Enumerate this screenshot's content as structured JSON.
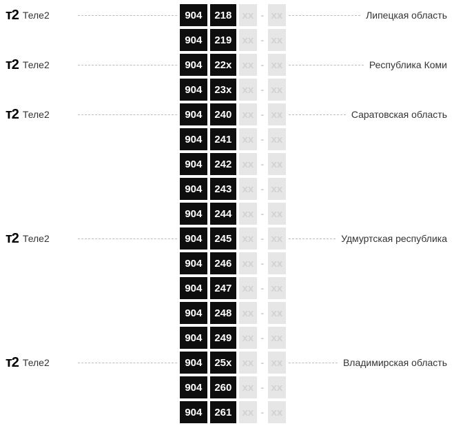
{
  "colors": {
    "dark_bg": "#0e0e0e",
    "dark_text": "#ffffff",
    "light_bg": "#e6e6e6",
    "light_text": "#d2d2d2",
    "dash": "#bbbbbb",
    "text": "#333333"
  },
  "placeholder": "xx",
  "sep": "-",
  "operator_label": "Теле2",
  "operator_logo": "т2",
  "rows": [
    {
      "show_operator": true,
      "def": "904",
      "range": "218",
      "region": "Липецкая область"
    },
    {
      "show_operator": false,
      "def": "904",
      "range": "219",
      "region": ""
    },
    {
      "show_operator": true,
      "def": "904",
      "range": "22x",
      "region": "Республика Коми"
    },
    {
      "show_operator": false,
      "def": "904",
      "range": "23x",
      "region": ""
    },
    {
      "show_operator": true,
      "def": "904",
      "range": "240",
      "region": "Саратовская область"
    },
    {
      "show_operator": false,
      "def": "904",
      "range": "241",
      "region": ""
    },
    {
      "show_operator": false,
      "def": "904",
      "range": "242",
      "region": ""
    },
    {
      "show_operator": false,
      "def": "904",
      "range": "243",
      "region": ""
    },
    {
      "show_operator": false,
      "def": "904",
      "range": "244",
      "region": ""
    },
    {
      "show_operator": true,
      "def": "904",
      "range": "245",
      "region": "Удмуртская республика"
    },
    {
      "show_operator": false,
      "def": "904",
      "range": "246",
      "region": ""
    },
    {
      "show_operator": false,
      "def": "904",
      "range": "247",
      "region": ""
    },
    {
      "show_operator": false,
      "def": "904",
      "range": "248",
      "region": ""
    },
    {
      "show_operator": false,
      "def": "904",
      "range": "249",
      "region": ""
    },
    {
      "show_operator": true,
      "def": "904",
      "range": "25x",
      "region": "Владимирская область"
    },
    {
      "show_operator": false,
      "def": "904",
      "range": "260",
      "region": ""
    },
    {
      "show_operator": false,
      "def": "904",
      "range": "261",
      "region": ""
    }
  ]
}
